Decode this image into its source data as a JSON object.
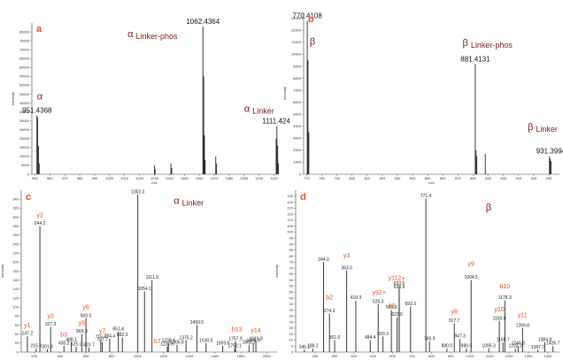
{
  "colors": {
    "panel_letter": "#e8501a",
    "species": "#7a1a1a",
    "ion": "#e8501a",
    "bars": "#222222",
    "axis": "#444444"
  },
  "chart_data": [
    {
      "id": "a",
      "type": "bar",
      "panel_label": "a",
      "xlabel": "m/z",
      "ylabel": "Intensity",
      "xlim": [
        948,
        1112
      ],
      "ylim": [
        0,
        85000
      ],
      "xticks": [
        950,
        960,
        970,
        980,
        990,
        1000,
        1010,
        1020,
        1030,
        1040,
        1050,
        1060,
        1070,
        1080,
        1090,
        1100,
        1110
      ],
      "yticks": [
        0,
        5000,
        10000,
        15000,
        20000,
        25000,
        30000,
        35000,
        40000,
        45000,
        50000,
        55000,
        60000,
        65000,
        70000,
        75000,
        80000
      ],
      "x": [
        951.4,
        951.9,
        952.4,
        952.9,
        1030.0,
        1030.4,
        1041.0,
        1041.5,
        1062.4,
        1062.9,
        1063.4,
        1063.9,
        1071.0,
        1071.5,
        1111.4,
        1111.9,
        1112.4,
        1112.9
      ],
      "values": [
        33000,
        32000,
        16000,
        6000,
        5000,
        3000,
        6000,
        3500,
        83000,
        55000,
        22000,
        8000,
        10000,
        6000,
        20000,
        27000,
        16000,
        6000
      ],
      "peak_labels": [
        {
          "x": 951.4368,
          "y": 33000,
          "text": "951.4368"
        },
        {
          "x": 1062.4364,
          "y": 83000,
          "text": "1062.4364"
        },
        {
          "x": 1111.424,
          "y": 27000,
          "text": "1111.424"
        }
      ],
      "species_labels": [
        {
          "greek": "α",
          "name": "",
          "x": 951.4,
          "y": 42000
        },
        {
          "greek": "α",
          "name": "Linker-phos",
          "x": 1012,
          "y": 77000
        },
        {
          "greek": "α",
          "name": "Linker",
          "x": 1090,
          "y": 35000
        }
      ]
    },
    {
      "id": "b",
      "type": "bar",
      "panel_label": "b",
      "xlabel": "m/z",
      "ylabel": "Intensity",
      "xlim": [
        768,
        937
      ],
      "ylim": [
        0,
        13500
      ],
      "xticks": [
        770,
        780,
        790,
        800,
        810,
        820,
        830,
        840,
        850,
        860,
        870,
        880,
        890,
        900,
        910,
        920,
        930
      ],
      "yticks": [
        0,
        1000,
        2000,
        3000,
        4000,
        5000,
        6000,
        7000,
        8000,
        9000,
        10000,
        11000,
        12000,
        13000
      ],
      "x": [
        770.4,
        770.9,
        771.4,
        881.4,
        881.9,
        882.4,
        888.0,
        930.4,
        930.9,
        931.4
      ],
      "values": [
        12800,
        9500,
        3500,
        9200,
        2000,
        1500,
        1700,
        1500,
        1300,
        1100
      ],
      "peak_labels": [
        {
          "x": 770.4108,
          "y": 12800,
          "text": "770.4108"
        },
        {
          "x": 881.4131,
          "y": 9200,
          "text": "881.4131"
        },
        {
          "x": 931.3994,
          "y": 1500,
          "text": "931.3994"
        }
      ],
      "species_labels": [
        {
          "greek": "β",
          "name": "",
          "x": 772,
          "y": 10800
        },
        {
          "greek": "β",
          "name": "Linker-phos",
          "x": 873,
          "y": 10700
        },
        {
          "greek": "β",
          "name": "Linker",
          "x": 916,
          "y": 3700
        }
      ]
    },
    {
      "id": "c",
      "type": "bar",
      "panel_label": "c",
      "xlabel": "m/z",
      "ylabel": "Intensity",
      "xlim": [
        100,
        2080
      ],
      "ylim": [
        0,
        360
      ],
      "xticks": [
        200,
        400,
        600,
        800,
        1000,
        1200,
        1400,
        1600,
        1800,
        2000
      ],
      "yticks": [
        0,
        20,
        40,
        60,
        80,
        100,
        120,
        140,
        160,
        180,
        200,
        220,
        240,
        260,
        280,
        300,
        320,
        340
      ],
      "x": [
        147.2,
        215.3,
        244.2,
        301.9,
        327.3,
        430.2,
        488.1,
        525.1,
        569.3,
        600.5,
        623.7,
        715.4,
        727.7,
        784.4,
        851.4,
        882.3,
        1002.3,
        1054.1,
        1111.9,
        1230.6,
        1238.4,
        1305.8,
        1375.2,
        1459.5,
        1530.5,
        1659.6,
        1752.1,
        1757.9,
        1862.7,
        1895.9,
        1915.9
      ],
      "values": [
        35,
        8,
        280,
        6,
        56,
        14,
        22,
        12,
        40,
        75,
        10,
        28,
        22,
        30,
        45,
        32,
        350,
        135,
        160,
        12,
        20,
        16,
        26,
        60,
        20,
        14,
        8,
        24,
        16,
        20,
        24
      ],
      "peak_labels": [
        {
          "x": 147.2,
          "y": 35,
          "text": "147.2"
        },
        {
          "x": 215.3,
          "y": 8,
          "text": "215.3"
        },
        {
          "x": 244.2,
          "y": 280,
          "text": "244.2"
        },
        {
          "x": 301.9,
          "y": 6,
          "text": "301.9"
        },
        {
          "x": 327.3,
          "y": 56,
          "text": "327.3"
        },
        {
          "x": 430.2,
          "y": 14,
          "text": "430.2"
        },
        {
          "x": 488.1,
          "y": 22,
          "text": "488.1"
        },
        {
          "x": 525.1,
          "y": 12,
          "text": "525.1"
        },
        {
          "x": 569.3,
          "y": 40,
          "text": "569.3"
        },
        {
          "x": 600.5,
          "y": 75,
          "text": "600.5"
        },
        {
          "x": 623.7,
          "y": 10,
          "text": "623.7"
        },
        {
          "x": 715.4,
          "y": 28,
          "text": "715.4"
        },
        {
          "x": 727.7,
          "y": 22,
          "text": "727.7"
        },
        {
          "x": 784.4,
          "y": 30,
          "text": "784.4"
        },
        {
          "x": 851.4,
          "y": 45,
          "text": "851.4"
        },
        {
          "x": 882.3,
          "y": 32,
          "text": "882.3"
        },
        {
          "x": 1002.3,
          "y": 350,
          "text": "1002.3"
        },
        {
          "x": 1054.1,
          "y": 135,
          "text": "1054.1"
        },
        {
          "x": 1111.9,
          "y": 160,
          "text": "1111.9"
        },
        {
          "x": 1230.6,
          "y": 12,
          "text": "1230.6"
        },
        {
          "x": 1238.4,
          "y": 20,
          "text": "1238.4"
        },
        {
          "x": 1305.8,
          "y": 16,
          "text": "1305.8"
        },
        {
          "x": 1375.2,
          "y": 26,
          "text": "1375.2"
        },
        {
          "x": 1459.5,
          "y": 60,
          "text": "1459.5"
        },
        {
          "x": 1530.5,
          "y": 20,
          "text": "1530.5"
        },
        {
          "x": 1659.6,
          "y": 14,
          "text": "1659.6"
        },
        {
          "x": 1752.1,
          "y": 8,
          "text": "1752.1"
        },
        {
          "x": 1757.9,
          "y": 24,
          "text": "1757.9"
        },
        {
          "x": 1862.7,
          "y": 16,
          "text": "1862.7"
        },
        {
          "x": 1895.9,
          "y": 20,
          "text": "1895.9"
        },
        {
          "x": 1915.9,
          "y": 24,
          "text": "1915.9"
        }
      ],
      "ion_labels": [
        {
          "text": "y1",
          "x": 147.2,
          "y": 55
        },
        {
          "text": "y2",
          "x": 244.2,
          "y": 300
        },
        {
          "text": "y3",
          "x": 327.3,
          "y": 76
        },
        {
          "text": "b3",
          "x": 430.2,
          "y": 34
        },
        {
          "text": "y5",
          "x": 569.3,
          "y": 60
        },
        {
          "text": "y6",
          "x": 600.5,
          "y": 95
        },
        {
          "text": "y7",
          "x": 727.7,
          "y": 42
        },
        {
          "text": "b7",
          "x": 1154,
          "y": 20
        },
        {
          "text": "b13",
          "x": 1770,
          "y": 46
        },
        {
          "text": "y14",
          "x": 1915.9,
          "y": 44
        }
      ],
      "species_labels": [
        {
          "greek": "α",
          "name": "Linker",
          "x": 1280,
          "y": 330
        }
      ]
    },
    {
      "id": "d",
      "type": "bar",
      "panel_label": "d",
      "xlabel": "m/z",
      "ylabel": "Intensity",
      "xlim": [
        100,
        1460
      ],
      "ylim": [
        0,
        135
      ],
      "xticks": [
        200,
        300,
        400,
        500,
        600,
        700,
        800,
        900,
        1000,
        1100,
        1200,
        1300,
        1400
      ],
      "yticks": [
        0,
        5,
        10,
        15,
        20,
        25,
        30,
        35,
        40,
        45,
        50,
        55,
        60,
        65,
        70,
        75,
        80,
        85,
        90,
        95,
        100,
        105,
        110,
        115,
        120,
        125,
        130
      ],
      "x": [
        145.1,
        188.2,
        244.0,
        274.3,
        301.0,
        363.0,
        410.3,
        484.4,
        525.3,
        550.3,
        593.3,
        623.0,
        633.5,
        633.9,
        692.3,
        771.4,
        789.9,
        880.0,
        917.7,
        947.3,
        980.5,
        1004.5,
        1095.3,
        1150.0,
        1168.7,
        1178.3,
        1232.3,
        1246.8,
        1269.8,
        1347.7,
        1384.8,
        1426.7
      ],
      "values": [
        2,
        3,
        75,
        32,
        10,
        68,
        43,
        10,
        40,
        13,
        35,
        29,
        55,
        52,
        38,
        128,
        9,
        3,
        24,
        11,
        3,
        60,
        3,
        26,
        8,
        43,
        3,
        5,
        20,
        2,
        8,
        5
      ],
      "peak_labels": [
        {
          "x": 145.1,
          "y": 2,
          "text": "145.1"
        },
        {
          "x": 188.2,
          "y": 3,
          "text": "188.2"
        },
        {
          "x": 244.0,
          "y": 75,
          "text": "244.0"
        },
        {
          "x": 274.3,
          "y": 32,
          "text": "274.3"
        },
        {
          "x": 301.0,
          "y": 10,
          "text": "301.0"
        },
        {
          "x": 363.0,
          "y": 68,
          "text": "363.0"
        },
        {
          "x": 410.3,
          "y": 43,
          "text": "410.3"
        },
        {
          "x": 484.4,
          "y": 10,
          "text": "484.4"
        },
        {
          "x": 525.3,
          "y": 40,
          "text": "525.3"
        },
        {
          "x": 550.3,
          "y": 13,
          "text": "550.3"
        },
        {
          "x": 593.3,
          "y": 35,
          "text": "593.3"
        },
        {
          "x": 623.0,
          "y": 29,
          "text": "623.0"
        },
        {
          "x": 633.5,
          "y": 55,
          "text": "633.5"
        },
        {
          "x": 633.9,
          "y": 52,
          "text": "633.9"
        },
        {
          "x": 692.3,
          "y": 38,
          "text": "692.3"
        },
        {
          "x": 771.4,
          "y": 128,
          "text": "771.4"
        },
        {
          "x": 789.9,
          "y": 9,
          "text": "789.9"
        },
        {
          "x": 880.0,
          "y": 3,
          "text": "880.0"
        },
        {
          "x": 917.7,
          "y": 24,
          "text": "917.7"
        },
        {
          "x": 947.3,
          "y": 11,
          "text": "947.3"
        },
        {
          "x": 980.5,
          "y": 3,
          "text": "980.5"
        },
        {
          "x": 1004.5,
          "y": 60,
          "text": "1004.5"
        },
        {
          "x": 1095.3,
          "y": 3,
          "text": "1095.3"
        },
        {
          "x": 1150.0,
          "y": 26,
          "text": "1150.0"
        },
        {
          "x": 1168.7,
          "y": 8,
          "text": "1168.7"
        },
        {
          "x": 1178.3,
          "y": 43,
          "text": "1178.3"
        },
        {
          "x": 1232.3,
          "y": 3,
          "text": "1232.3"
        },
        {
          "x": 1246.8,
          "y": 5,
          "text": "1246.8"
        },
        {
          "x": 1269.8,
          "y": 20,
          "text": "1269.8"
        },
        {
          "x": 1347.7,
          "y": 2,
          "text": "1347.7"
        },
        {
          "x": 1384.8,
          "y": 8,
          "text": "1384.8"
        },
        {
          "x": 1426.7,
          "y": 5,
          "text": "1426.7"
        }
      ],
      "ion_labels": [
        {
          "text": "b2",
          "x": 274.3,
          "y": 44
        },
        {
          "text": "y3",
          "x": 363.0,
          "y": 79
        },
        {
          "text": "y92+",
          "x": 530,
          "y": 48
        },
        {
          "text": "y112+",
          "x": 620,
          "y": 60
        },
        {
          "text": "b5",
          "x": 598,
          "y": 37
        },
        {
          "text": "y8",
          "x": 917.7,
          "y": 32
        },
        {
          "text": "y9",
          "x": 1004.5,
          "y": 72
        },
        {
          "text": "b10",
          "x": 1178.3,
          "y": 53
        },
        {
          "text": "y10",
          "x": 1150.0,
          "y": 34
        },
        {
          "text": "y11",
          "x": 1269.8,
          "y": 29
        }
      ],
      "species_labels": [
        {
          "greek": "β",
          "name": "",
          "x": 1080,
          "y": 118
        }
      ]
    }
  ]
}
